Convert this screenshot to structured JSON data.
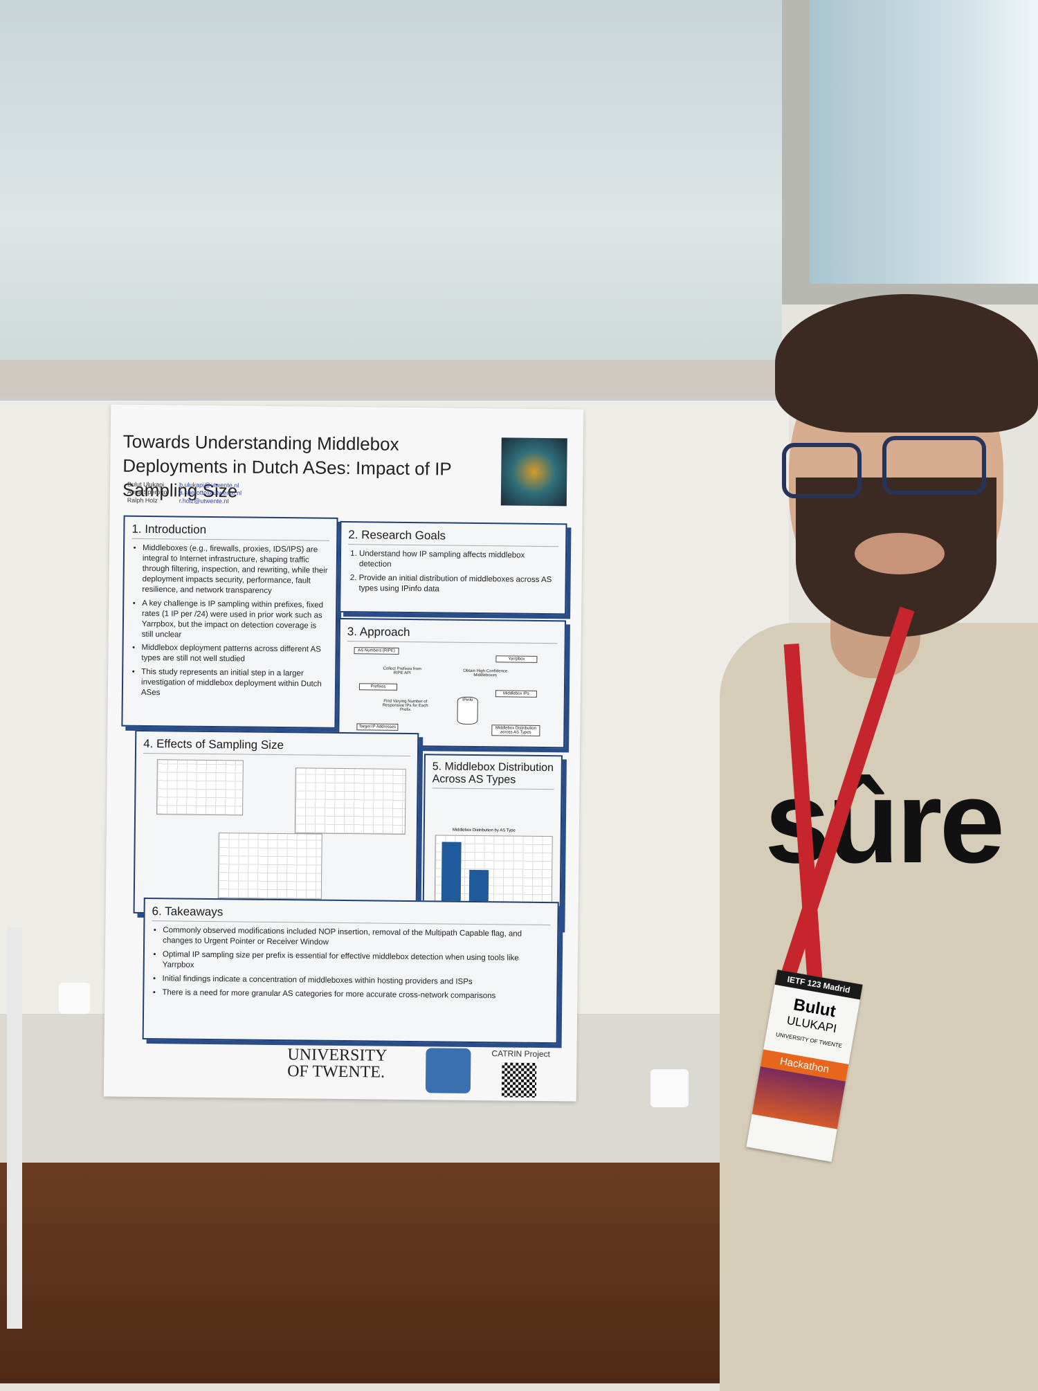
{
  "poster": {
    "title": "Towards Understanding Middlebox Deployments in Dutch ASes: Impact of IP Sampling Size",
    "authors": [
      {
        "name": "Bulut Ulukapi",
        "email": "b.ulukapi@utwente.nl"
      },
      {
        "name": "Anna Sperotto",
        "email": "a.sperotto@utwente.nl"
      },
      {
        "name": "Ralph Holz",
        "email": "r.holz@utwente.nl"
      }
    ],
    "introduction": {
      "heading": "1.  Introduction",
      "bullets": [
        "Middleboxes (e.g., firewalls, proxies, IDS/IPS) are integral to Internet infrastructure, shaping traffic through filtering, inspection, and rewriting, while their deployment impacts security, performance, fault resilience, and network transparency",
        "A key challenge is IP sampling within prefixes, fixed rates (1 IP per /24) were used in prior work such as Yarrpbox, but the impact on detection coverage is still unclear",
        "Middlebox deployment patterns across different AS types are still not well studied",
        "This study represents an initial step in a larger investigation of middlebox deployment within Dutch ASes"
      ]
    },
    "research_goals": {
      "heading": "2. Research Goals",
      "items": [
        "Understand how IP sampling affects middlebox detection",
        "Provide an initial distribution of middleboxes across AS types using IPinfo data"
      ]
    },
    "approach": {
      "heading": "3. Approach",
      "nodes": [
        "AS Numbers (RIPE)",
        "Collect Prefixes from RIPE API",
        "Prefixes",
        "Find Varying Number of Responsive IPs for Each Prefix",
        "Target IP Addresses",
        "Yarrpbox",
        "Obtain High-Confidence Middleboxes",
        "Middlebox IPs",
        "IPinfo",
        "Middlebox Distribution across AS Types"
      ]
    },
    "effects": {
      "heading": "4. Effects of Sampling Size"
    },
    "distribution": {
      "heading": "5. Middlebox Distribution Across AS Types",
      "chart_title": "Middlebox Distribution by AS Type"
    },
    "takeaways": {
      "heading": "6. Takeaways",
      "bullets": [
        "Commonly observed modifications included NOP insertion, removal of the Multipath Capable flag, and changes to Urgent Pointer or Receiver Window",
        "Optimal IP sampling size per prefix is essential for effective middlebox detection when using tools like Yarrpbox",
        "Initial findings indicate a concentration of middleboxes within hosting providers and ISPs",
        "There is a need for more granular AS categories for more accurate cross-network comparisons"
      ]
    },
    "footer": {
      "university": "UNIVERSITY OF TWENTE.",
      "project": "CATRIN Project"
    }
  },
  "shirt": "sûre",
  "badge": {
    "event": "IETF 123 Madrid",
    "first_name": "Bulut",
    "last_name": "ULUKAPI",
    "affiliation": "UNIVERSITY OF TWENTE",
    "tag": "Hackathon"
  }
}
